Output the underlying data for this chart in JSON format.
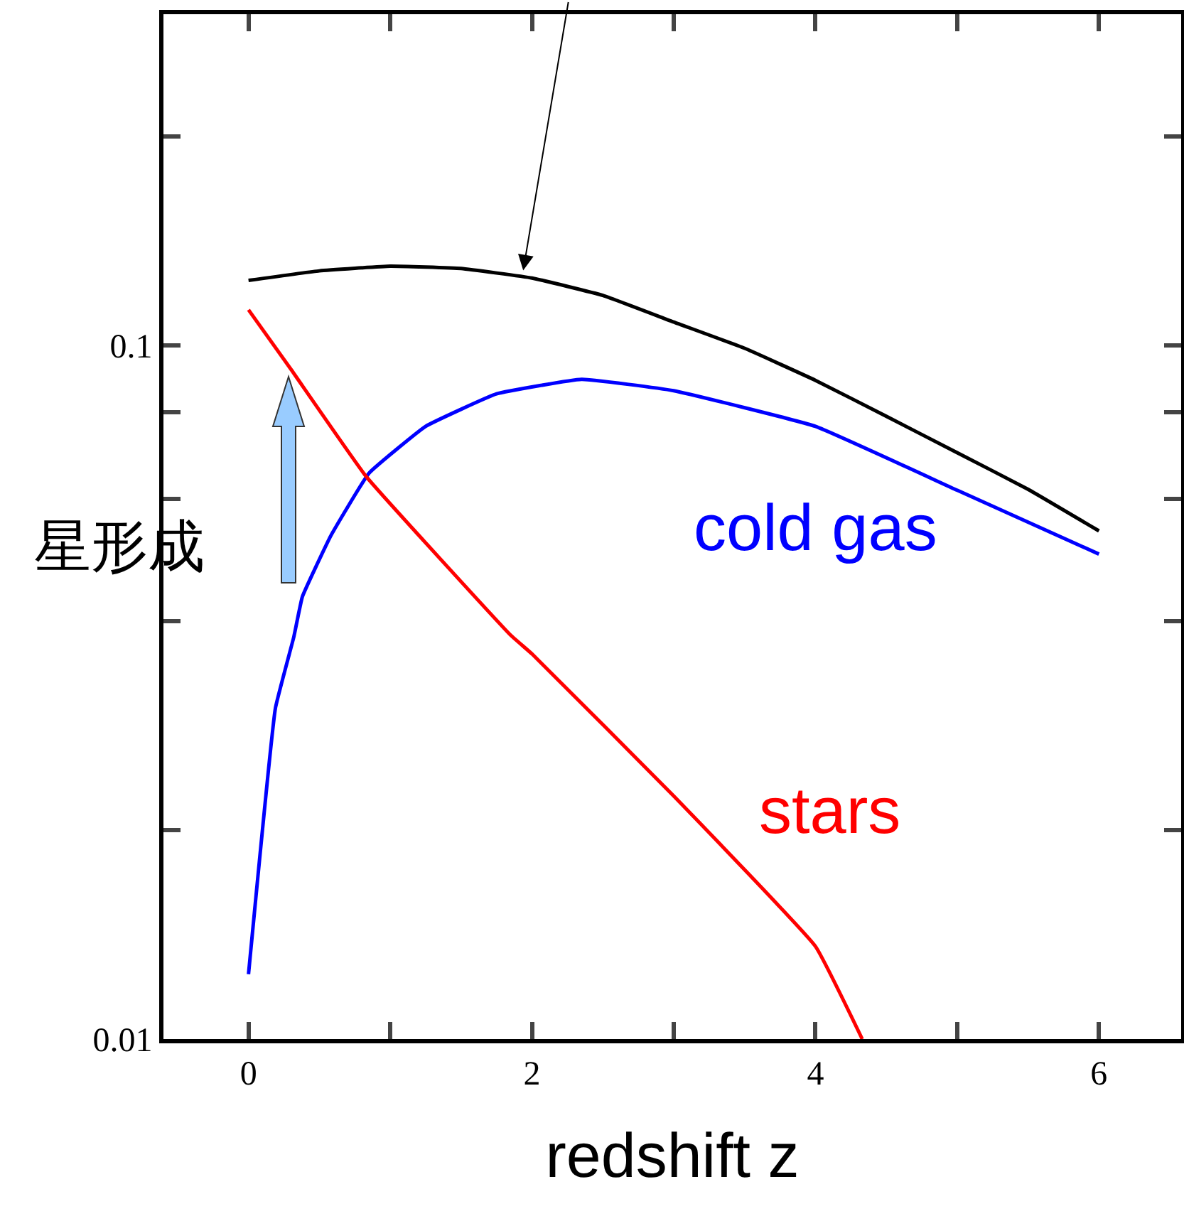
{
  "chart_data": {
    "type": "line",
    "xlabel": "redshift z",
    "annotations": [
      "星形成"
    ],
    "xlim": [
      -0.6,
      6.58
    ],
    "ylim": [
      0.01,
      0.3
    ],
    "log": "y",
    "grid": false,
    "legend": false,
    "marker": "none",
    "line_style": "solid",
    "xticks": [
      0,
      {
        "value": 1,
        "label": null
      },
      2,
      {
        "value": 3,
        "label": null
      },
      4,
      {
        "value": 5,
        "label": null
      },
      6
    ],
    "yticks": [
      0.01,
      {
        "value": 0.02,
        "label": null
      },
      {
        "value": 0.04,
        "label": null
      },
      {
        "value": 0.06,
        "label": null
      },
      {
        "value": 0.08,
        "label": null
      },
      0.1,
      {
        "value": 0.2,
        "label": null
      }
    ],
    "series": [
      {
        "color": "#000000",
        "x": [
          0,
          0.5,
          1,
          1.5,
          2,
          2.5,
          3,
          3.5,
          4,
          4.5,
          5,
          5.5,
          6
        ],
        "values": [
          0.124,
          0.128,
          0.13,
          0.129,
          0.125,
          0.118,
          0.108,
          0.099,
          0.089,
          0.079,
          0.07,
          0.062,
          0.054
        ]
      },
      {
        "name": "cold gas",
        "color": "#0000ff",
        "x": [
          0,
          0.19,
          0.32,
          0.38,
          0.58,
          0.85,
          1.25,
          1.75,
          2.35,
          3,
          4,
          5,
          6
        ],
        "values": [
          0.0124,
          0.03,
          0.038,
          0.0434,
          0.0531,
          0.0654,
          0.0764,
          0.0851,
          0.0893,
          0.086,
          0.0764,
          0.0618,
          0.05
        ]
      },
      {
        "name": "stars",
        "color": "#ff0000",
        "x": [
          0,
          0.3,
          0.83,
          1.85,
          2,
          3,
          4,
          4.33
        ],
        "values": [
          0.1125,
          0.0923,
          0.0647,
          0.0382,
          0.0359,
          0.0224,
          0.0136,
          0.01
        ]
      }
    ]
  }
}
